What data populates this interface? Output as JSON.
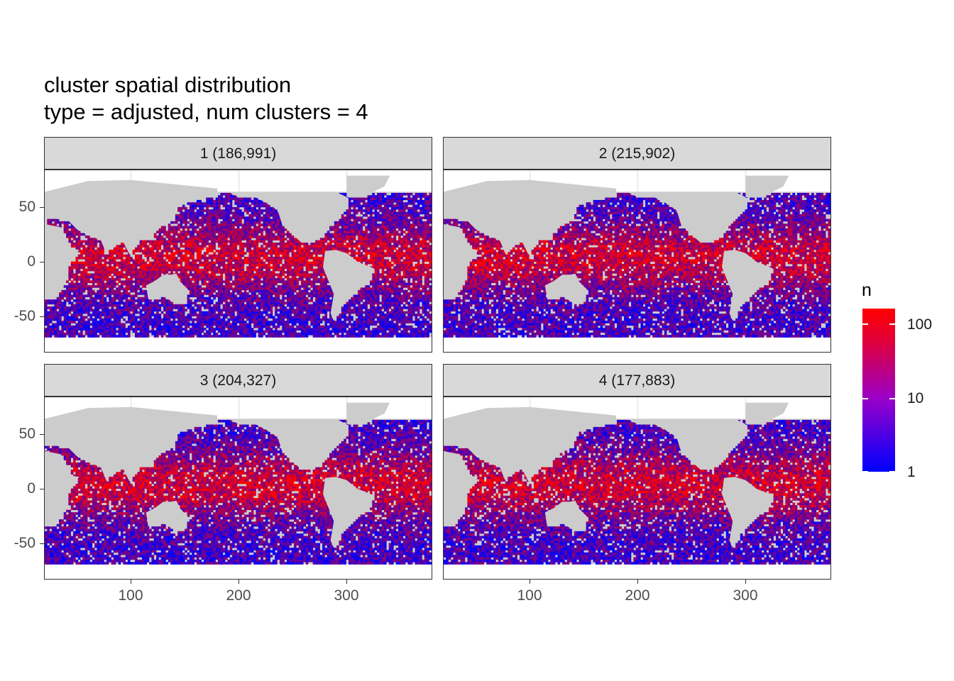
{
  "chart_data": {
    "type": "heatmap",
    "title": "cluster spatial distribution",
    "subtitle": "type = adjusted, num clusters = 4",
    "x_ticks": [
      100,
      200,
      300
    ],
    "y_ticks": [
      50,
      0,
      -50
    ],
    "y_tick_labels": [
      "50",
      "0",
      "-50"
    ],
    "xlim": [
      20,
      380
    ],
    "ylim": [
      -85,
      85
    ],
    "facets": [
      {
        "label": "1 (186,991)",
        "cluster": 1,
        "count": 186991
      },
      {
        "label": "2 (215,902)",
        "cluster": 2,
        "count": 215902
      },
      {
        "label": "3 (204,327)",
        "cluster": 3,
        "count": 204327
      },
      {
        "label": "4 (177,883)",
        "cluster": 4,
        "count": 177883
      }
    ],
    "legend": {
      "title": "n",
      "scale": "log",
      "breaks": [
        1,
        10,
        100
      ],
      "break_labels": [
        "1",
        "10",
        "100"
      ],
      "low_color": "#0000ff",
      "high_color": "#ff0000"
    },
    "land_color": "#cccccc",
    "grid": true
  }
}
